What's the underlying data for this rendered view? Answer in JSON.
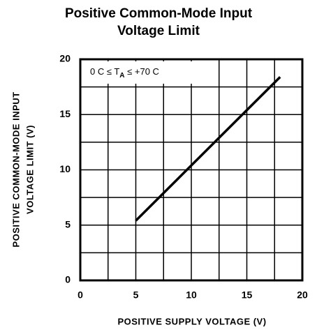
{
  "chart_data": {
    "type": "line",
    "title": [
      "Positive Common-Mode Input",
      "Voltage Limit"
    ],
    "x_label": "POSITIVE SUPPLY VOLTAGE (V)",
    "y_label": [
      "POSITIVE COMMON-MODE INPUT",
      "VOLTAGE LIMIT (V)"
    ],
    "annotation": {
      "prefix": "0 C ≤ T",
      "subscript": "A",
      "suffix": " ≤ +70 C"
    },
    "series": [
      {
        "name": "limit",
        "color": "#000000",
        "x": [
          5,
          18
        ],
        "values": [
          5.4,
          18.4
        ]
      }
    ],
    "xlim": [
      0,
      20
    ],
    "xticks": [
      0,
      5,
      10,
      15,
      20
    ],
    "xminor": [
      2.5,
      7.5,
      12.5,
      17.5
    ],
    "ylim": [
      0,
      20
    ],
    "yticks": [
      0,
      5,
      10,
      15,
      20
    ],
    "yminor": [
      2.5,
      7.5,
      12.5,
      17.5
    ],
    "grid": true
  }
}
